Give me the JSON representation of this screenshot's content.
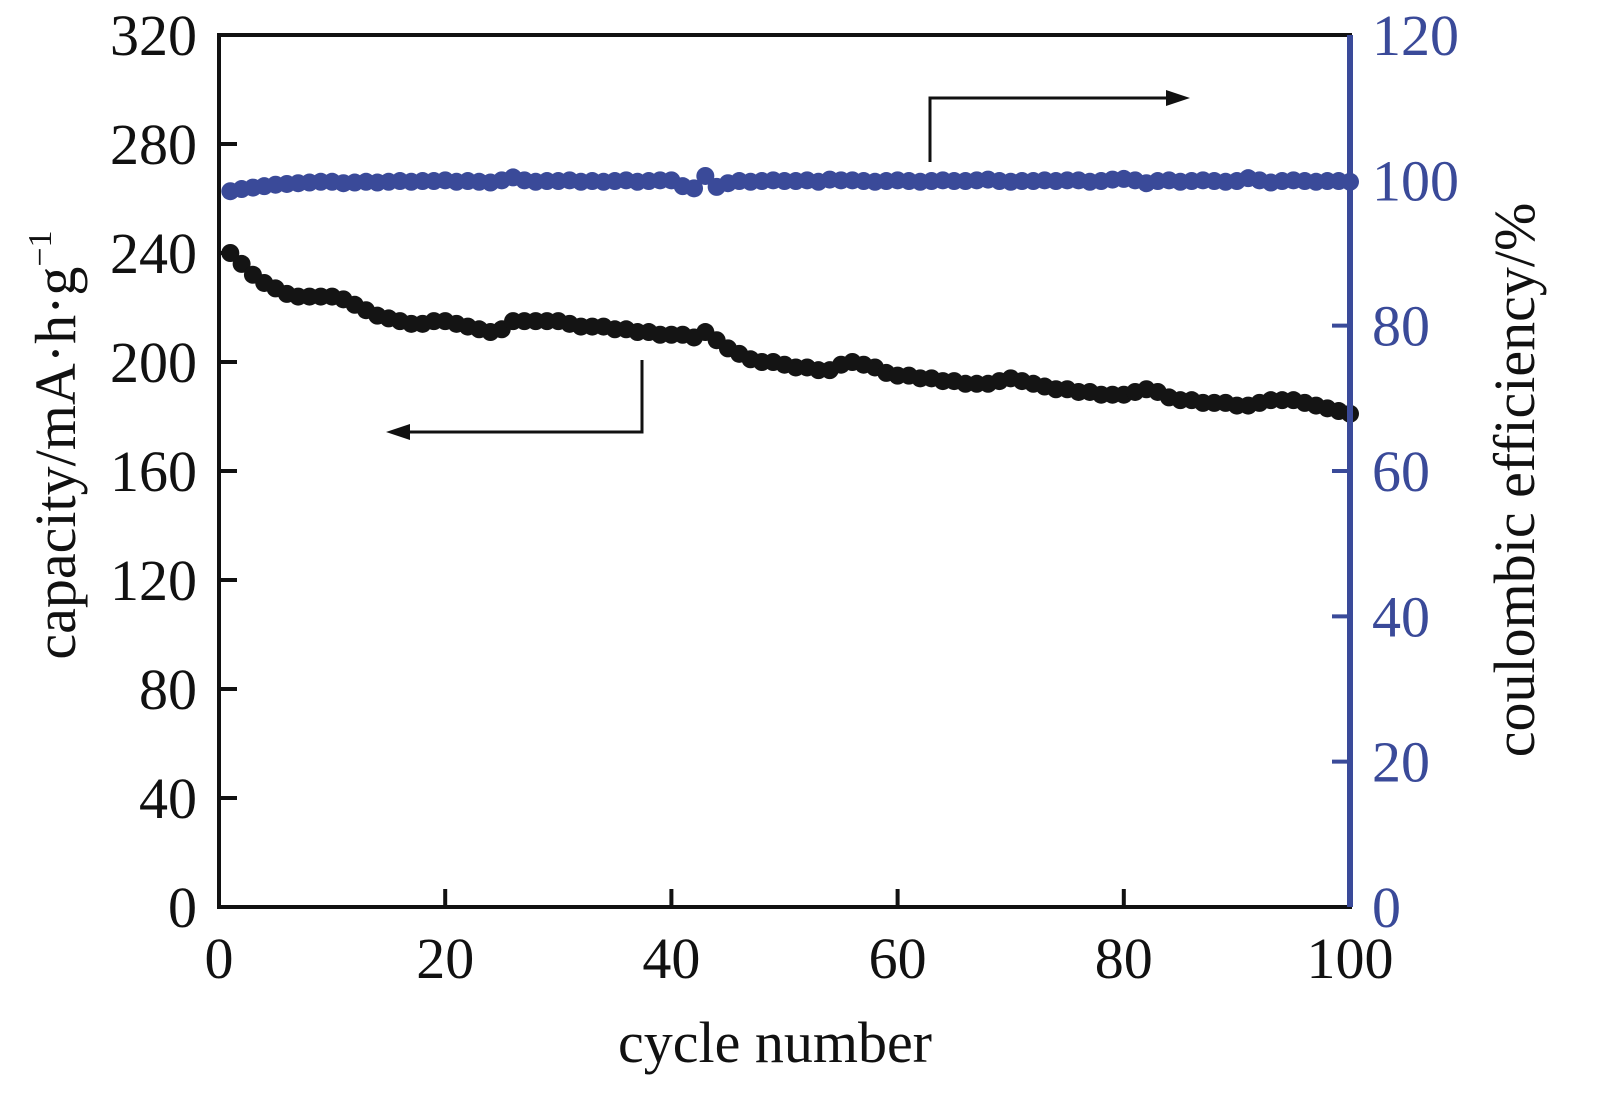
{
  "colors": {
    "capacity": "#141414",
    "efficiency": "#3a4a99",
    "axis": "#111111"
  },
  "chart_data": {
    "type": "scatter",
    "xlabel": "cycle number",
    "ylabel_left": {
      "text": "capacity/mA·h·g",
      "superscript": "−1"
    },
    "ylabel_right": "coulombic efficiency/%",
    "xlim": [
      0,
      100
    ],
    "ylim_left": [
      0,
      320
    ],
    "ylim_right": [
      0,
      120
    ],
    "x_ticks": [
      "0",
      "20",
      "40",
      "60",
      "80",
      "100"
    ],
    "y_left_ticks": [
      "0",
      "40",
      "80",
      "120",
      "160",
      "200",
      "240",
      "280",
      "320"
    ],
    "y_right_ticks": [
      "0",
      "20",
      "40",
      "60",
      "80",
      "100",
      "120"
    ],
    "grid": false,
    "legend": "none",
    "annotations": [
      {
        "type": "arrow",
        "points_to": "left axis",
        "series": "capacity"
      },
      {
        "type": "arrow",
        "points_to": "right axis",
        "series": "coulombic efficiency"
      }
    ],
    "series": [
      {
        "axis": "left",
        "x": [
          1,
          2,
          3,
          4,
          5,
          6,
          7,
          8,
          9,
          10,
          11,
          12,
          13,
          14,
          15,
          16,
          17,
          18,
          19,
          20,
          21,
          22,
          23,
          24,
          25,
          26,
          27,
          28,
          29,
          30,
          31,
          32,
          33,
          34,
          35,
          36,
          37,
          38,
          39,
          40,
          41,
          42,
          43,
          44,
          45,
          46,
          47,
          48,
          49,
          50,
          51,
          52,
          53,
          54,
          55,
          56,
          57,
          58,
          59,
          60,
          61,
          62,
          63,
          64,
          65,
          66,
          67,
          68,
          69,
          70,
          71,
          72,
          73,
          74,
          75,
          76,
          77,
          78,
          79,
          80,
          81,
          82,
          83,
          84,
          85,
          86,
          87,
          88,
          89,
          90,
          91,
          92,
          93,
          94,
          95,
          96,
          97,
          98,
          99,
          100
        ],
        "values": [
          240,
          236,
          232,
          229,
          227,
          225,
          224,
          224,
          224,
          224,
          223,
          221,
          219,
          217,
          216,
          215,
          214,
          214,
          215,
          215,
          214,
          213,
          212,
          211,
          212,
          215,
          215,
          215,
          215,
          215,
          214,
          213,
          213,
          213,
          212,
          212,
          211,
          211,
          210,
          210,
          210,
          209,
          211,
          208,
          205,
          203,
          201,
          200,
          200,
          199,
          198,
          198,
          197,
          197,
          199,
          200,
          199,
          198,
          196,
          195,
          195,
          194,
          194,
          193,
          193,
          192,
          192,
          192,
          193,
          194,
          193,
          192,
          191,
          190,
          190,
          189,
          189,
          188,
          188,
          188,
          189,
          190,
          189,
          187,
          186,
          186,
          185,
          185,
          185,
          184,
          184,
          185,
          186,
          186,
          186,
          185,
          184,
          183,
          182,
          181
        ]
      },
      {
        "axis": "right",
        "x": [
          1,
          2,
          3,
          4,
          5,
          6,
          7,
          8,
          9,
          10,
          11,
          12,
          13,
          14,
          15,
          16,
          17,
          18,
          19,
          20,
          21,
          22,
          23,
          24,
          25,
          26,
          27,
          28,
          29,
          30,
          31,
          32,
          33,
          34,
          35,
          36,
          37,
          38,
          39,
          40,
          41,
          42,
          43,
          44,
          45,
          46,
          47,
          48,
          49,
          50,
          51,
          52,
          53,
          54,
          55,
          56,
          57,
          58,
          59,
          60,
          61,
          62,
          63,
          64,
          65,
          66,
          67,
          68,
          69,
          70,
          71,
          72,
          73,
          74,
          75,
          76,
          77,
          78,
          79,
          80,
          81,
          82,
          83,
          84,
          85,
          86,
          87,
          88,
          89,
          90,
          91,
          92,
          93,
          94,
          95,
          96,
          97,
          98,
          99,
          100
        ],
        "values": [
          98.5,
          98.8,
          99.0,
          99.2,
          99.4,
          99.5,
          99.6,
          99.7,
          99.8,
          99.8,
          99.6,
          99.7,
          99.8,
          99.7,
          99.8,
          99.9,
          99.8,
          99.9,
          99.9,
          100.0,
          99.8,
          99.9,
          99.8,
          99.7,
          100.0,
          100.4,
          100.0,
          99.8,
          99.9,
          99.9,
          100.0,
          99.8,
          99.9,
          99.8,
          99.9,
          100.0,
          99.8,
          99.9,
          100.0,
          100.0,
          99.2,
          98.9,
          100.6,
          99.1,
          99.6,
          99.9,
          99.8,
          99.9,
          100.0,
          99.9,
          99.9,
          100.0,
          99.8,
          100.1,
          100.0,
          100.0,
          99.9,
          99.8,
          99.9,
          100.0,
          99.9,
          99.8,
          99.9,
          100.0,
          99.9,
          99.9,
          100.0,
          100.1,
          99.9,
          99.8,
          99.9,
          99.9,
          100.0,
          99.9,
          100.0,
          100.0,
          99.8,
          99.9,
          100.1,
          100.2,
          100.0,
          99.6,
          99.9,
          100.0,
          99.8,
          99.9,
          100.0,
          99.9,
          99.8,
          99.9,
          100.3,
          100.0,
          99.7,
          99.9,
          100.0,
          99.9,
          99.8,
          99.9,
          99.9,
          99.8
        ]
      }
    ]
  }
}
